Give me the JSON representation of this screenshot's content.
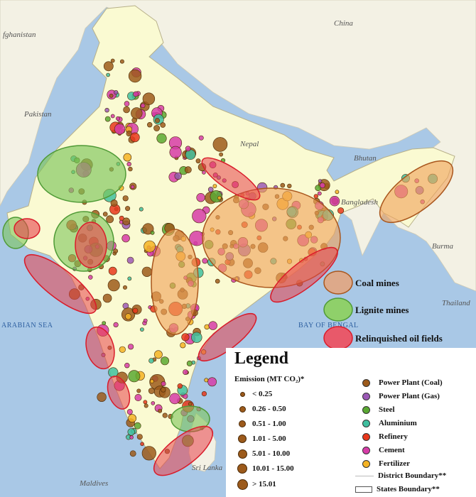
{
  "labels": {
    "countries": [
      "fghanistan",
      "China",
      "Pakistan",
      "Nepal",
      "Bhutan",
      "Bangladesh",
      "Burma",
      "Thailand",
      "Sri Lanka",
      "Maldives"
    ],
    "seas": [
      "ARABIAN SEA",
      "BAY OF BENGAL"
    ]
  },
  "zone_legend": [
    {
      "label": "Coal mines",
      "color": "#d99a6c"
    },
    {
      "label": "Lignite mines",
      "color": "#7dc45a"
    },
    {
      "label": "Relinquished oil fields",
      "color": "#e8414b"
    }
  ],
  "legend": {
    "title": "Legend",
    "emission_title": "Emission (MT CO₂)*",
    "sizes": [
      "< 0.25",
      "0.26 - 0.50",
      "0.51 - 1.00",
      "1.01 - 5.00",
      "5.01 - 10.00",
      "10.01 - 15.00",
      "> 15.01"
    ],
    "types": [
      {
        "label": "Power Plant (Coal)",
        "color": "#9c5a1b"
      },
      {
        "label": "Power Plant (Gas)",
        "color": "#9b59b6"
      },
      {
        "label": "Steel",
        "color": "#5aa832"
      },
      {
        "label": "Aluminium",
        "color": "#3fbf9f"
      },
      {
        "label": "Refinery",
        "color": "#e8371c"
      },
      {
        "label": "Cement",
        "color": "#d63ca8"
      },
      {
        "label": "Fertilizer",
        "color": "#f4b324"
      }
    ],
    "district_boundary": "District Boundary**",
    "states_boundary": "States Boundary**"
  }
}
